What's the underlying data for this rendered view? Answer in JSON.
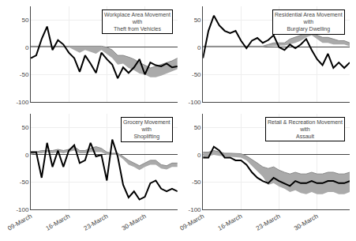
{
  "chart_data": [
    {
      "type": "line",
      "title": "Workplace Area Movement\nwith\nTheft from Vehicles",
      "categories": [
        "09-March",
        null,
        null,
        null,
        null,
        null,
        null,
        "16-March",
        null,
        null,
        null,
        null,
        null,
        null,
        "23-March",
        null,
        null,
        null,
        null,
        null,
        null,
        "30-March",
        null,
        null,
        null,
        null,
        null,
        null
      ],
      "series": [
        {
          "type": "band",
          "color": "#aaaaaa",
          "lower": [
            0,
            0,
            0,
            0,
            0,
            0,
            0,
            0,
            -5,
            -10,
            -5,
            -8,
            -12,
            -5,
            -12,
            -20,
            -32,
            -30,
            -38,
            -42,
            -48,
            -50,
            -55,
            -55,
            -52,
            -48,
            -45,
            -40
          ],
          "upper": [
            2,
            2,
            2,
            2,
            2,
            2,
            2,
            2,
            2,
            2,
            2,
            2,
            2,
            2,
            0,
            -5,
            -15,
            -15,
            -18,
            -22,
            -28,
            -33,
            -38,
            -35,
            -32,
            -28,
            -25,
            -20
          ]
        },
        {
          "type": "line",
          "color": "#888888",
          "values": [
            2,
            2,
            2,
            2,
            2,
            2,
            2,
            2,
            2,
            2,
            2,
            2,
            2,
            2,
            0,
            -5,
            -15,
            -15,
            -18,
            -22,
            -28,
            -33,
            -38,
            -35,
            -32,
            -28,
            -25,
            -20
          ]
        },
        {
          "type": "line",
          "color": "#000000",
          "values": [
            -20,
            -15,
            15,
            38,
            -5,
            13,
            5,
            -10,
            -20,
            -45,
            -15,
            -30,
            -47,
            -10,
            -22,
            -32,
            -57,
            -37,
            -47,
            -37,
            -22,
            -50,
            -28,
            -33,
            -35,
            -30,
            -37,
            -35
          ]
        }
      ],
      "ylim": [
        -100,
        75
      ],
      "yticks": [
        -100,
        -50,
        0,
        50
      ],
      "grid": true,
      "tick_labels": "y"
    },
    {
      "type": "line",
      "title": "Residential Area Movement\nwith\nBurglary Dwelling",
      "categories": [
        "09-March",
        null,
        null,
        null,
        null,
        null,
        null,
        "16-March",
        null,
        null,
        null,
        null,
        null,
        null,
        "23-March",
        null,
        null,
        null,
        null,
        null,
        null,
        "30-March",
        null,
        null,
        null,
        null,
        null,
        null
      ],
      "series": [
        {
          "type": "band",
          "color": "#aaaaaa",
          "lower": [
            0,
            0,
            0,
            0,
            0,
            0,
            0,
            0,
            0,
            0,
            0,
            0,
            2,
            3,
            3,
            3,
            5,
            8,
            12,
            18,
            22,
            15,
            8,
            8,
            5,
            5,
            5,
            2
          ],
          "upper": [
            2,
            2,
            2,
            2,
            2,
            2,
            2,
            2,
            2,
            2,
            2,
            2,
            5,
            8,
            8,
            8,
            15,
            18,
            22,
            28,
            28,
            22,
            18,
            18,
            15,
            12,
            12,
            8
          ]
        },
        {
          "type": "line",
          "color": "#888888",
          "values": [
            2,
            2,
            2,
            2,
            2,
            2,
            2,
            2,
            2,
            2,
            2,
            2,
            5,
            8,
            8,
            8,
            15,
            18,
            22,
            28,
            28,
            22,
            18,
            18,
            15,
            12,
            12,
            8
          ]
        },
        {
          "type": "line",
          "color": "#000000",
          "values": [
            -20,
            30,
            58,
            40,
            30,
            26,
            30,
            12,
            -2,
            12,
            17,
            8,
            13,
            22,
            0,
            -5,
            5,
            -2,
            5,
            15,
            -5,
            -22,
            -33,
            -12,
            -38,
            -28,
            -38,
            -28
          ]
        }
      ],
      "ylim": [
        -100,
        75
      ],
      "yticks": [
        -100,
        -50,
        0,
        50
      ],
      "grid": true,
      "tick_labels": "y"
    },
    {
      "type": "line",
      "title": "Grocery Movement\nwith\nShoplifting",
      "categories": [
        "09-March",
        null,
        null,
        null,
        null,
        null,
        null,
        "16-March",
        null,
        null,
        null,
        null,
        null,
        null,
        "23-March",
        null,
        null,
        null,
        null,
        null,
        null,
        "30-March",
        null,
        null,
        null,
        null,
        null,
        null
      ],
      "series": [
        {
          "type": "band",
          "color": "#aaaaaa",
          "lower": [
            0,
            3,
            3,
            5,
            3,
            5,
            3,
            5,
            8,
            3,
            3,
            5,
            5,
            5,
            0,
            0,
            0,
            -8,
            -18,
            -22,
            -28,
            -22,
            -18,
            -18,
            -25,
            -27,
            -22,
            -22
          ],
          "upper": [
            3,
            5,
            8,
            8,
            8,
            10,
            8,
            10,
            15,
            8,
            8,
            12,
            15,
            12,
            5,
            3,
            3,
            -3,
            -10,
            -15,
            -20,
            -15,
            -10,
            -10,
            -18,
            -20,
            -15,
            -15
          ]
        },
        {
          "type": "line",
          "color": "#888888",
          "values": [
            3,
            5,
            8,
            8,
            8,
            10,
            8,
            10,
            15,
            8,
            8,
            12,
            15,
            12,
            5,
            3,
            3,
            -3,
            -10,
            -15,
            -20,
            -15,
            -10,
            -10,
            -18,
            -20,
            -15,
            -15
          ]
        },
        {
          "type": "line",
          "color": "#000000",
          "values": [
            5,
            5,
            -42,
            22,
            -22,
            8,
            -22,
            8,
            18,
            -15,
            -10,
            22,
            -3,
            0,
            -47,
            28,
            -3,
            -55,
            -78,
            -67,
            -82,
            -77,
            -52,
            -47,
            -62,
            -67,
            -62,
            -67
          ]
        }
      ],
      "ylim": [
        -100,
        75
      ],
      "yticks": [
        -100,
        -50,
        0,
        50
      ],
      "grid": true
    },
    {
      "type": "line",
      "title": "Retail & Recreation Movement\nwith\nAssault",
      "categories": [
        "09-March",
        null,
        null,
        null,
        null,
        null,
        null,
        "16-March",
        null,
        null,
        null,
        null,
        null,
        null,
        "23-March",
        null,
        null,
        null,
        null,
        null,
        null,
        "30-March",
        null,
        null,
        null,
        null,
        null,
        null
      ],
      "series": [
        {
          "type": "band",
          "color": "#aaaaaa",
          "lower": [
            -5,
            -3,
            0,
            -2,
            -3,
            -3,
            -5,
            -5,
            -10,
            -20,
            -30,
            -40,
            -55,
            -52,
            -58,
            -62,
            -68,
            -65,
            -70,
            -72,
            -68,
            -72,
            -72,
            -68,
            -68,
            -72,
            -72,
            -68
          ],
          "upper": [
            5,
            5,
            8,
            5,
            3,
            3,
            2,
            2,
            -2,
            -8,
            -15,
            -22,
            -25,
            -22,
            -28,
            -32,
            -35,
            -32,
            -35,
            -35,
            -32,
            -35,
            -35,
            -32,
            -32,
            -35,
            -35,
            -32
          ]
        },
        {
          "type": "line",
          "color": "#888888",
          "values": [
            5,
            5,
            8,
            5,
            3,
            3,
            2,
            2,
            -2,
            -8,
            -15,
            -22,
            -25,
            -22,
            -28,
            -32,
            -35,
            -32,
            -35,
            -35,
            -32,
            -35,
            -35,
            -32,
            -32,
            -35,
            -35,
            -32
          ]
        },
        {
          "type": "line",
          "color": "#000000",
          "values": [
            -5,
            -5,
            15,
            8,
            -5,
            -5,
            -10,
            -10,
            -18,
            -32,
            -42,
            -48,
            -52,
            -42,
            -48,
            -52,
            -57,
            -48,
            -52,
            -52,
            -48,
            -52,
            -52,
            -48,
            -48,
            -52,
            -52,
            -48
          ]
        }
      ],
      "ylim": [
        -100,
        75
      ],
      "yticks": [
        -100,
        -50,
        0,
        50
      ],
      "grid": true
    }
  ]
}
